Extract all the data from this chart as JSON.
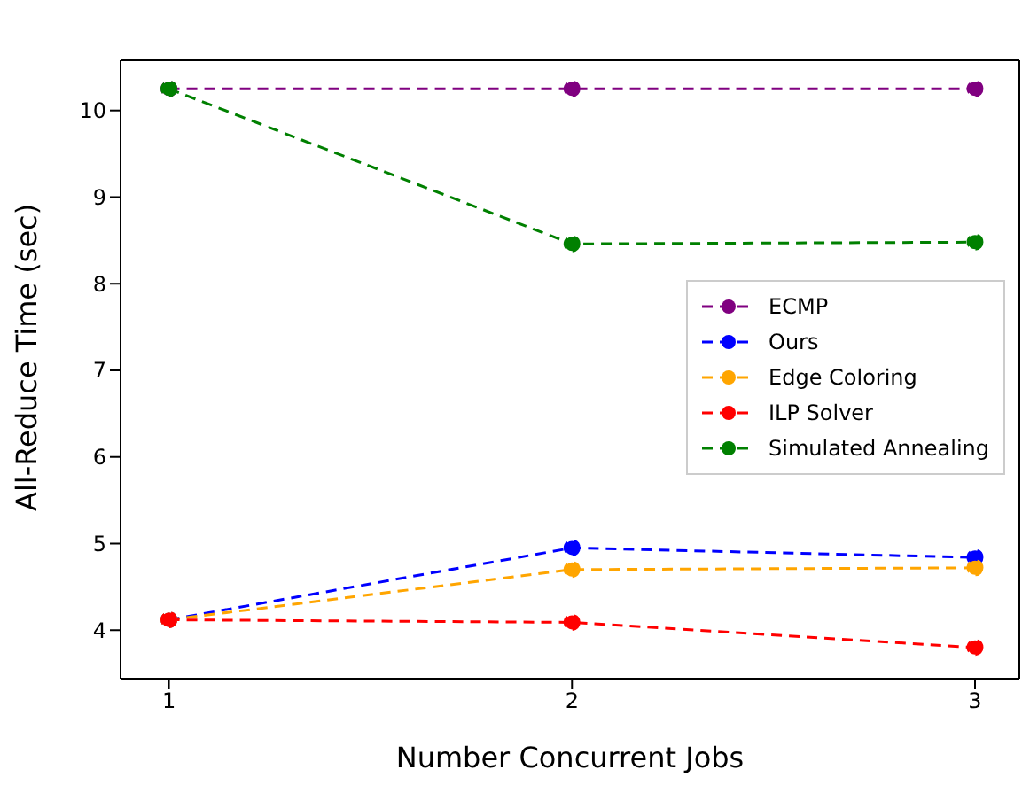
{
  "chart_data": {
    "type": "line",
    "xlabel": "Number Concurrent Jobs",
    "ylabel": "All-Reduce Time (sec)",
    "x": [
      1,
      2,
      3
    ],
    "xlim": [
      0.88,
      3.11
    ],
    "xticks": [
      1,
      2,
      3
    ],
    "ylim": [
      3.44,
      10.58
    ],
    "yticks": [
      4,
      5,
      6,
      7,
      8,
      9,
      10
    ],
    "marker": "circle",
    "line_style": "dashed",
    "grid": false,
    "legend": "right",
    "series": [
      {
        "name": "ECMP",
        "color": "#800080",
        "values": [
          10.25,
          10.25,
          10.25
        ]
      },
      {
        "name": "Ours",
        "color": "#0000ff",
        "values": [
          4.12,
          4.95,
          4.84
        ]
      },
      {
        "name": "Edge Coloring",
        "color": "#ffa500",
        "values": [
          4.12,
          4.7,
          4.72
        ]
      },
      {
        "name": "ILP Solver",
        "color": "#ff0000",
        "values": [
          4.12,
          4.09,
          3.8
        ]
      },
      {
        "name": "Simulated Annealing",
        "color": "#008000",
        "values": [
          10.25,
          8.46,
          8.48
        ]
      }
    ]
  }
}
